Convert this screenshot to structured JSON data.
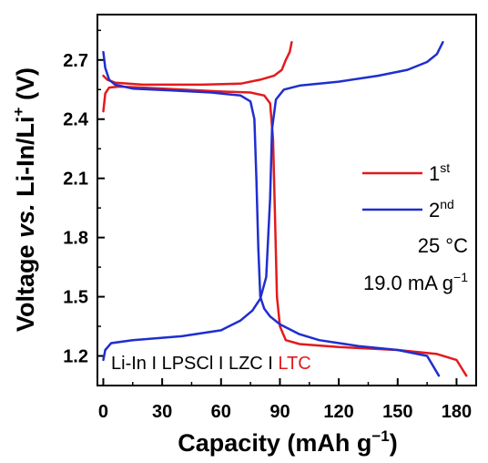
{
  "chart_data": {
    "type": "line",
    "xlabel": "Capacity (mAh g",
    "xlabel_exp": "−1",
    "xlabel_close": ")",
    "ylabel_a": "Voltage ",
    "ylabel_b": "vs.",
    "ylabel_c": " Li-In/Li",
    "ylabel_sup": "+",
    "ylabel_unit": " (V)",
    "xlim": [
      -3,
      190
    ],
    "ylim": [
      1.05,
      2.93
    ],
    "x_ticks": [
      0,
      30,
      60,
      90,
      120,
      150,
      180
    ],
    "x_tick_labels": [
      "0",
      "30",
      "60",
      "90",
      "120",
      "150",
      "180"
    ],
    "y_ticks": [
      1.2,
      1.5,
      1.8,
      2.1,
      2.4,
      2.7
    ],
    "y_tick_labels": [
      "1.2",
      "1.5",
      "1.8",
      "2.1",
      "2.4",
      "2.7"
    ],
    "grid": false,
    "legend_position": "right-middle",
    "series": [
      {
        "name": "1",
        "name_sup": "st",
        "color": "#e31a1c",
        "segments": [
          [
            [
              0,
              2.44
            ],
            [
              1,
              2.53
            ],
            [
              3,
              2.56
            ],
            [
              8,
              2.565
            ],
            [
              20,
              2.56
            ],
            [
              40,
              2.55
            ],
            [
              60,
              2.54
            ],
            [
              75,
              2.535
            ],
            [
              82,
              2.52
            ],
            [
              85,
              2.48
            ],
            [
              86.5,
              2.3
            ],
            [
              87.5,
              1.9
            ],
            [
              88.5,
              1.5
            ],
            [
              90,
              1.35
            ],
            [
              93,
              1.28
            ],
            [
              100,
              1.26
            ],
            [
              120,
              1.245
            ],
            [
              150,
              1.23
            ],
            [
              170,
              1.21
            ],
            [
              180,
              1.18
            ],
            [
              185,
              1.1
            ]
          ],
          [
            [
              0,
              2.62
            ],
            [
              2,
              2.6
            ],
            [
              6,
              2.585
            ],
            [
              20,
              2.575
            ],
            [
              50,
              2.575
            ],
            [
              70,
              2.58
            ],
            [
              80,
              2.6
            ],
            [
              87,
              2.62
            ],
            [
              91,
              2.65
            ],
            [
              93,
              2.7
            ],
            [
              95,
              2.74
            ],
            [
              96,
              2.79
            ]
          ]
        ]
      },
      {
        "name": "2",
        "name_sup": "nd",
        "color": "#1f2ed0",
        "segments": [
          [
            [
              0,
              2.74
            ],
            [
              1,
              2.66
            ],
            [
              3,
              2.6
            ],
            [
              6,
              2.575
            ],
            [
              15,
              2.555
            ],
            [
              35,
              2.545
            ],
            [
              55,
              2.535
            ],
            [
              70,
              2.52
            ],
            [
              75,
              2.49
            ],
            [
              77,
              2.4
            ],
            [
              78,
              2.1
            ],
            [
              79,
              1.75
            ],
            [
              80,
              1.5
            ],
            [
              82,
              1.44
            ],
            [
              85,
              1.4
            ],
            [
              90,
              1.36
            ],
            [
              100,
              1.31
            ],
            [
              110,
              1.28
            ],
            [
              130,
              1.25
            ],
            [
              150,
              1.23
            ],
            [
              165,
              1.2
            ],
            [
              171,
              1.1
            ]
          ],
          [
            [
              0,
              1.18
            ],
            [
              1,
              1.23
            ],
            [
              4,
              1.265
            ],
            [
              15,
              1.28
            ],
            [
              40,
              1.3
            ],
            [
              60,
              1.33
            ],
            [
              70,
              1.38
            ],
            [
              76,
              1.43
            ],
            [
              80,
              1.49
            ],
            [
              83,
              1.6
            ],
            [
              85,
              2.0
            ],
            [
              86,
              2.35
            ],
            [
              88,
              2.5
            ],
            [
              92,
              2.55
            ],
            [
              100,
              2.57
            ],
            [
              120,
              2.59
            ],
            [
              140,
              2.62
            ],
            [
              155,
              2.65
            ],
            [
              165,
              2.69
            ],
            [
              170,
              2.73
            ],
            [
              173,
              2.79
            ]
          ]
        ]
      }
    ],
    "annotations": {
      "temperature": "25 °C",
      "rate": "19.0 mA g",
      "rate_exp": "−1",
      "cell": [
        {
          "text": "Li-In",
          "color": "#000000"
        },
        {
          "text": " I ",
          "color": "#000000"
        },
        {
          "text": "LPSCl",
          "color": "#000000"
        },
        {
          "text": " I ",
          "color": "#000000"
        },
        {
          "text": "LZC",
          "color": "#000000"
        },
        {
          "text": " I ",
          "color": "#000000"
        },
        {
          "text": "LTC",
          "color": "#e31a1c"
        }
      ]
    }
  }
}
